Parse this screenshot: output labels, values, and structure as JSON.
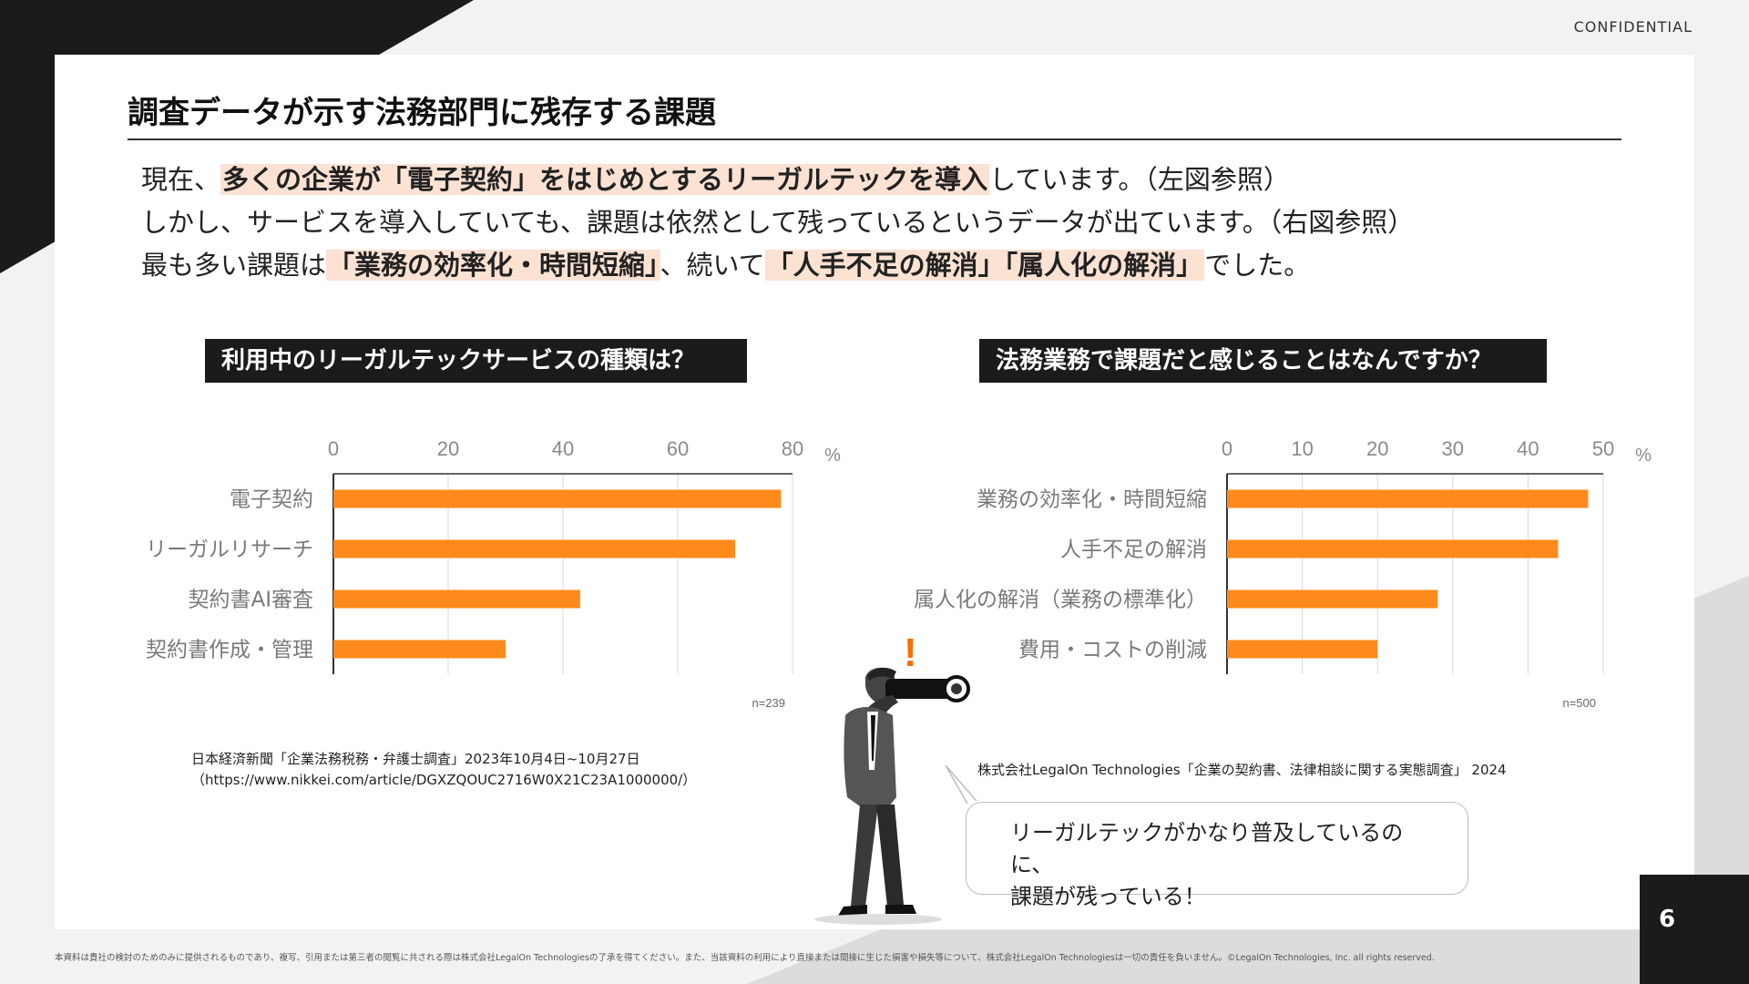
{
  "header": {
    "confidential": "CONFIDENTIAL",
    "title": "調査データが示す法務部門に残存する課題"
  },
  "intro": {
    "line1": [
      {
        "t": "現在、",
        "hl": false
      },
      {
        "t": "多くの企業が「電子契約」をはじめとするリーガルテックを導入",
        "hl": true
      },
      {
        "t": "しています。（左図参照）",
        "hl": false
      }
    ],
    "line2": [
      {
        "t": "しかし、サービスを導入していても、課題は依然として残っているというデータが出ています。（右図参照）",
        "hl": false
      }
    ],
    "line3": [
      {
        "t": "最も多い課題は",
        "hl": false
      },
      {
        "t": "「業務の効率化・時間短縮」",
        "hl": true
      },
      {
        "t": "、続いて",
        "hl": false
      },
      {
        "t": "「人手不足の解消」「属人化の解消」",
        "hl": true
      },
      {
        "t": "でした。",
        "hl": false
      }
    ]
  },
  "left": {
    "heading": "利用中のリーガルテックサービスの種類は？",
    "sample": "n=239",
    "source_line1": "日本経済新聞「企業法務税務・弁護士調査」2023年10月4日~10月27日",
    "source_line2": "（https://www.nikkei.com/article/DGXZQOUC2716W0X21C23A1000000/）"
  },
  "right": {
    "heading": "法務業務で課題だと感じることはなんですか？",
    "sample": "n=500",
    "source": "株式会社LegalOn Technologies「企業の契約書、法律相談に関する実態調査」 2024"
  },
  "bubble": {
    "line1": "リーガルテックがかなり普及しているのに、",
    "line2": "課題が残っている！"
  },
  "figure": {
    "exclamation": "!"
  },
  "footer": {
    "note": "本資料は貴社の検討のためのみに提供されるものであり、複写、引用または第三者の閲覧に共される際は株式会社LegalOn Technologiesの了承を得てください。また、当該資料の利用により直接または間接に生じた損害や損失等について、株式会社LegalOn Technologiesは一切の責任を負いません。©LegalOn Technologies, Inc. all rights reserved.",
    "page": "6"
  },
  "colors": {
    "bar": "#ff8a1c",
    "accent_highlight": "#fbe2d3",
    "dark": "#1b1b1b",
    "exclamation": "#ff6a00"
  },
  "chart_data": [
    {
      "type": "bar",
      "orientation": "horizontal",
      "title": "利用中のリーガルテックサービスの種類は？",
      "categories": [
        "電子契約",
        "リーガルリサーチ",
        "契約書AI審査",
        "契約書作成・管理"
      ],
      "values": [
        78,
        70,
        43,
        30
      ],
      "xlim": [
        0,
        80
      ],
      "xticks": [
        0,
        20,
        40,
        60,
        80
      ],
      "unit": "%",
      "grid": true
    },
    {
      "type": "bar",
      "orientation": "horizontal",
      "title": "法務業務で課題だと感じることはなんですか？",
      "categories": [
        "業務の効率化・時間短縮",
        "人手不足の解消",
        "属人化の解消（業務の標準化）",
        "費用・コストの削減"
      ],
      "values": [
        48,
        44,
        28,
        20
      ],
      "xlim": [
        0,
        50
      ],
      "xticks": [
        0,
        10,
        20,
        30,
        40,
        50
      ],
      "unit": "%",
      "grid": true
    }
  ]
}
